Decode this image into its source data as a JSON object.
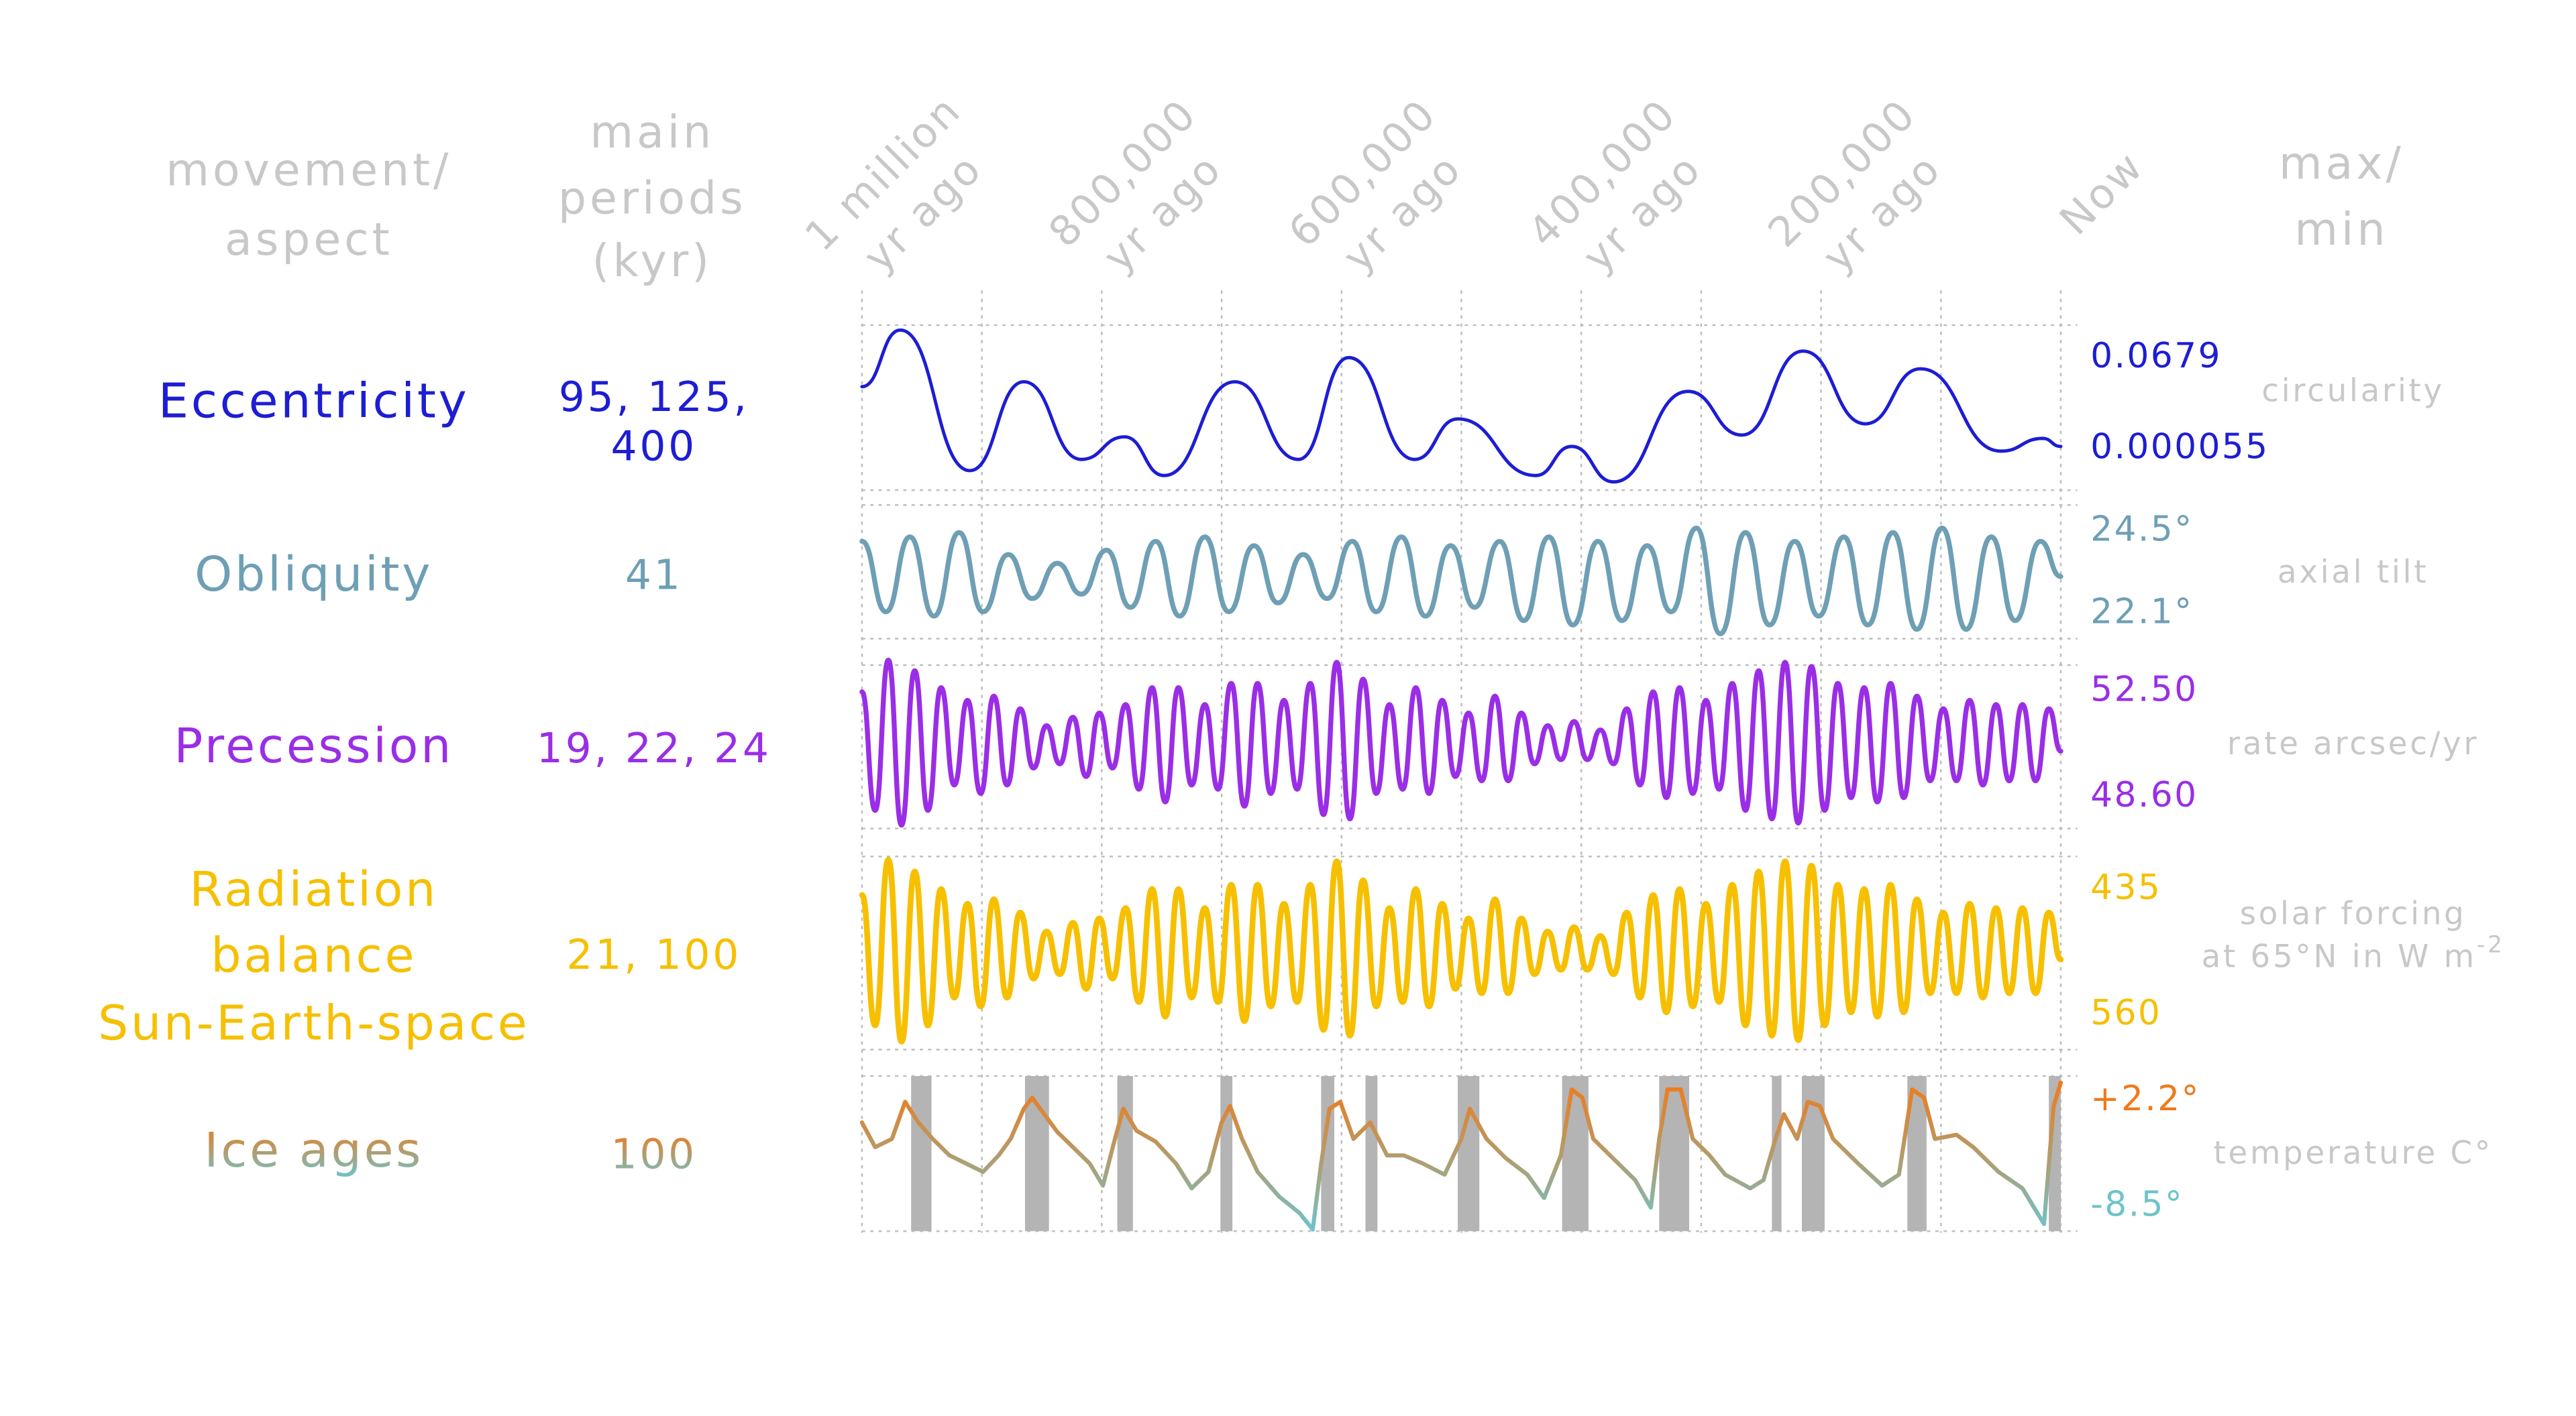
{
  "chart_data": {
    "type": "line",
    "headers": {
      "aspect": [
        "movement/",
        "aspect"
      ],
      "periods": [
        "main",
        "periods",
        "(kyr)"
      ],
      "range": [
        "max/",
        "min"
      ]
    },
    "xlim": [
      1000,
      0
    ],
    "grid": true,
    "xgrid": [
      1000,
      900,
      800,
      700,
      600,
      500,
      400,
      300,
      200,
      100,
      0
    ],
    "xticks": [
      {
        "value": 1000,
        "label": [
          "1 million",
          "yr ago"
        ]
      },
      {
        "value": 800,
        "label": [
          "800,000",
          "yr ago"
        ]
      },
      {
        "value": 600,
        "label": [
          "600,000",
          "yr ago"
        ]
      },
      {
        "value": 400,
        "label": [
          "400,000",
          "yr ago"
        ]
      },
      {
        "value": 200,
        "label": [
          "200,000",
          "yr ago"
        ]
      },
      {
        "value": 0,
        "label": [
          "Now"
        ]
      }
    ],
    "panels": [
      {
        "type": "line",
        "name": [
          "Eccentricity"
        ],
        "periods": [
          "95, 125,",
          "400"
        ],
        "unit": [
          "circularity"
        ],
        "color": "#1d1dd4",
        "ylim": [
          5.5e-05,
          0.0679
        ],
        "yticks": [
          0.0679,
          5.5e-05
        ],
        "smooth": true,
        "x": [
          1000,
          968,
          910,
          865,
          817,
          781,
          748,
          689,
          636,
          594,
          539,
          503,
          438,
          408,
          373,
          311,
          266,
          215,
          163,
          117,
          50,
          15,
          0
        ],
        "values": [
          0.0426,
          0.0679,
          0.0051,
          0.0448,
          0.0101,
          0.0202,
          0.0029,
          0.0448,
          0.0101,
          0.0556,
          0.0101,
          0.0282,
          0.0029,
          0.0159,
          5.5e-05,
          0.0405,
          0.021,
          0.0585,
          0.026,
          0.0506,
          0.0138,
          0.0195,
          0.0159
        ]
      },
      {
        "type": "line",
        "name": [
          "Obliquity"
        ],
        "periods": [
          "41"
        ],
        "unit": [
          "axial tilt"
        ],
        "color": "#6e9fb5",
        "ylim": [
          22.1,
          24.5
        ],
        "yticks": [
          {
            "value": 24.5,
            "label": "24.5°"
          },
          {
            "value": 22.1,
            "label": "22.1°"
          }
        ],
        "smooth": true,
        "x": [
          1000,
          980,
          960,
          940,
          919,
          899,
          878,
          858,
          837,
          817,
          796,
          776,
          755,
          735,
          714,
          694,
          673,
          653,
          632,
          612,
          591,
          571,
          550,
          530,
          509,
          489,
          468,
          448,
          427,
          407,
          386,
          366,
          345,
          325,
          304,
          284,
          263,
          243,
          222,
          202,
          181,
          161,
          140,
          120,
          99,
          79,
          58,
          38,
          17,
          0
        ],
        "values": [
          24.2,
          22.6,
          24.3,
          22.5,
          24.4,
          22.6,
          23.9,
          22.9,
          23.7,
          23.0,
          24.0,
          22.7,
          24.2,
          22.5,
          24.3,
          22.6,
          24.1,
          22.8,
          23.9,
          22.9,
          24.2,
          22.6,
          24.3,
          22.5,
          24.1,
          22.7,
          24.2,
          22.4,
          24.3,
          22.3,
          24.2,
          22.4,
          24.1,
          22.6,
          24.5,
          22.1,
          24.4,
          22.3,
          24.2,
          22.5,
          24.3,
          22.3,
          24.4,
          22.2,
          24.5,
          22.2,
          24.3,
          22.4,
          24.2,
          23.4
        ]
      },
      {
        "type": "line",
        "name": [
          "Precession"
        ],
        "periods": [
          "19, 22, 24"
        ],
        "unit": [
          "rate arcsec/yr"
        ],
        "color": "#9a2ee6",
        "ylim": [
          48.6,
          52.5
        ],
        "yticks": [
          {
            "value": 52.5,
            "label": "52.50"
          },
          {
            "value": 48.6,
            "label": "48.60"
          }
        ],
        "smooth": true,
        "x": [
          1000,
          989,
          978,
          967,
          956,
          945,
          934,
          923,
          912,
          901,
          890,
          879,
          868,
          857,
          846,
          835,
          824,
          813,
          802,
          791,
          780,
          769,
          758,
          747,
          736,
          725,
          714,
          703,
          692,
          681,
          670,
          659,
          648,
          637,
          626,
          615,
          604,
          593,
          582,
          571,
          560,
          549,
          538,
          527,
          516,
          505,
          494,
          483,
          472,
          461,
          450,
          439,
          428,
          417,
          406,
          395,
          384,
          373,
          362,
          351,
          340,
          329,
          318,
          307,
          296,
          285,
          274,
          263,
          252,
          241,
          230,
          219,
          208,
          197,
          186,
          175,
          164,
          153,
          142,
          131,
          120,
          109,
          98,
          87,
          76,
          65,
          54,
          43,
          32,
          21,
          10,
          0
        ],
        "values": [
          51.75,
          48.95,
          52.5,
          48.6,
          52.25,
          48.95,
          51.85,
          49.55,
          51.55,
          49.35,
          51.65,
          49.55,
          51.35,
          49.95,
          50.95,
          50.05,
          51.15,
          49.75,
          51.25,
          49.95,
          51.45,
          49.45,
          51.85,
          49.15,
          51.85,
          49.55,
          51.45,
          49.45,
          51.95,
          49.05,
          51.95,
          49.35,
          51.55,
          49.45,
          51.95,
          48.85,
          52.45,
          48.75,
          52.05,
          49.35,
          51.45,
          49.45,
          51.85,
          49.35,
          51.55,
          49.75,
          51.25,
          49.65,
          51.65,
          49.65,
          51.25,
          50.05,
          50.95,
          50.15,
          51.05,
          50.15,
          50.85,
          50.05,
          51.35,
          49.55,
          51.75,
          49.25,
          51.85,
          49.35,
          51.55,
          49.45,
          51.95,
          48.95,
          52.25,
          48.75,
          52.45,
          48.65,
          52.35,
          48.95,
          51.95,
          49.25,
          51.85,
          49.15,
          51.95,
          49.25,
          51.65,
          49.65,
          51.35,
          49.65,
          51.55,
          49.55,
          51.45,
          49.65,
          51.45,
          49.65,
          51.35,
          50.35
        ]
      },
      {
        "type": "line",
        "name": [
          "Radiation",
          "balance",
          "Sun-Earth-space"
        ],
        "periods": [
          "21, 100"
        ],
        "unit": [
          "solar forcing",
          "at 65°N in W m"
        ],
        "unit_sup": "-2",
        "color": "#f6c000",
        "ylim": [
          560,
          435
        ],
        "yticks": [
          435,
          560
        ],
        "smooth": true,
        "x": [
          1000,
          989,
          978,
          967,
          956,
          945,
          934,
          923,
          912,
          901,
          890,
          879,
          868,
          857,
          846,
          835,
          824,
          813,
          802,
          791,
          780,
          769,
          758,
          747,
          736,
          725,
          714,
          703,
          692,
          681,
          670,
          659,
          648,
          637,
          626,
          615,
          604,
          593,
          582,
          571,
          560,
          549,
          538,
          527,
          516,
          505,
          494,
          483,
          472,
          461,
          450,
          439,
          428,
          417,
          406,
          395,
          384,
          373,
          362,
          351,
          340,
          329,
          318,
          307,
          296,
          285,
          274,
          263,
          252,
          241,
          230,
          219,
          208,
          197,
          186,
          175,
          164,
          153,
          142,
          131,
          120,
          109,
          98,
          87,
          76,
          65,
          54,
          43,
          32,
          21,
          10,
          0
        ],
        "values": [
          459,
          548,
          435,
          559,
          443,
          548,
          455,
          529,
          465,
          535,
          462,
          529,
          471,
          516,
          484,
          513,
          478,
          523,
          475,
          516,
          468,
          532,
          455,
          542,
          455,
          529,
          468,
          532,
          452,
          545,
          452,
          535,
          465,
          532,
          452,
          551,
          436,
          555,
          449,
          535,
          468,
          532,
          455,
          535,
          465,
          523,
          475,
          526,
          462,
          526,
          475,
          513,
          484,
          510,
          481,
          510,
          487,
          513,
          471,
          529,
          459,
          539,
          455,
          535,
          465,
          532,
          452,
          548,
          443,
          555,
          436,
          558,
          439,
          548,
          452,
          539,
          455,
          542,
          452,
          539,
          462,
          526,
          471,
          526,
          465,
          529,
          468,
          526,
          468,
          526,
          471,
          503
        ]
      },
      {
        "type": "line",
        "name": [
          "Ice ages"
        ],
        "periods": [
          "100"
        ],
        "unit": [
          "temperature C°"
        ],
        "gradient": [
          "#f07a1a",
          "#b39c6c",
          "#6fc3c9"
        ],
        "band_color": "#b4b4b4",
        "ylim": [
          -8.5,
          2.2
        ],
        "yticks": [
          {
            "value": 2.2,
            "label": "+2.2°"
          },
          {
            "value": -8.5,
            "label": "-8.5°"
          }
        ],
        "smooth": false,
        "bands": [
          [
            959,
            942
          ],
          [
            864,
            844
          ],
          [
            787,
            774
          ],
          [
            701,
            691
          ],
          [
            617,
            606
          ],
          [
            580,
            570
          ],
          [
            503,
            485
          ],
          [
            416,
            394
          ],
          [
            335,
            310
          ],
          [
            241,
            233
          ],
          [
            216,
            197
          ],
          [
            128,
            112
          ],
          [
            10,
            0
          ]
        ],
        "x": [
          1000,
          989,
          975,
          964,
          953,
          941,
          927,
          913,
          899,
          886,
          876,
          865,
          858,
          848,
          837,
          824,
          810,
          799,
          789,
          782,
          771,
          755,
          738,
          725,
          711,
          700,
          693,
          683,
          670,
          652,
          635,
          624,
          617,
          610,
          601,
          590,
          576,
          562,
          548,
          532,
          514,
          500,
          493,
          479,
          463,
          445,
          431,
          417,
          408,
          399,
          390,
          376,
          355,
          342,
          335,
          328,
          317,
          307,
          293,
          280,
          259,
          248,
          238,
          231,
          220,
          211,
          201,
          190,
          169,
          149,
          135,
          124,
          114,
          105,
          87,
          73,
          52,
          32,
          14,
          6,
          0
        ],
        "values": [
          -0.7,
          -2.5,
          -1.9,
          0.8,
          -0.7,
          -1.9,
          -3.1,
          -3.7,
          -4.3,
          -3.1,
          -1.9,
          0.3,
          1.1,
          -0.1,
          -1.4,
          -2.5,
          -3.7,
          -5.3,
          -1.9,
          0.3,
          -1.3,
          -2.1,
          -3.7,
          -5.5,
          -4.3,
          -0.7,
          0.5,
          -1.9,
          -4.3,
          -6.1,
          -7.3,
          -8.5,
          -3.7,
          0.3,
          0.8,
          -1.9,
          -0.7,
          -3.1,
          -3.1,
          -3.7,
          -4.5,
          -1.9,
          0.3,
          -1.9,
          -3.3,
          -4.5,
          -6.2,
          -3.1,
          1.7,
          1.1,
          -1.9,
          -3.1,
          -4.9,
          -6.9,
          -1.9,
          1.7,
          1.7,
          -1.9,
          -3.1,
          -4.5,
          -5.5,
          -4.9,
          -1.9,
          -0.1,
          -1.9,
          0.8,
          0.5,
          -1.9,
          -3.7,
          -5.3,
          -4.5,
          1.7,
          1.1,
          -1.9,
          -1.6,
          -2.5,
          -4.3,
          -5.5,
          -8.1,
          0.5,
          2.2
        ]
      }
    ]
  }
}
